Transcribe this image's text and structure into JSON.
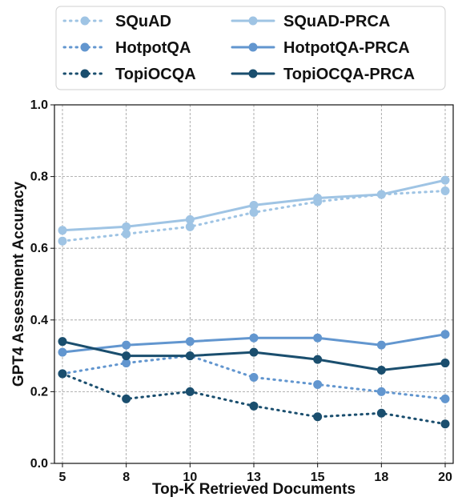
{
  "chart_data": {
    "type": "line",
    "title": "",
    "xlabel": "Top-K Retrieved Documents",
    "ylabel": "GPT4 Assessment Accuracy",
    "categories": [
      "5",
      "8",
      "10",
      "13",
      "15",
      "18",
      "20"
    ],
    "yticks": [
      "0.0",
      "0.2",
      "0.4",
      "0.6",
      "0.8",
      "1.0"
    ],
    "ylim": [
      0,
      1.0
    ],
    "grid": true,
    "legend_position": "top",
    "series": [
      {
        "name": "SQuAD",
        "color": "#9fc4e4",
        "dashed": true,
        "values": [
          0.62,
          0.64,
          0.66,
          0.7,
          0.73,
          0.75,
          0.76
        ]
      },
      {
        "name": "HotpotQA",
        "color": "#6296cf",
        "dashed": true,
        "values": [
          0.25,
          0.28,
          0.3,
          0.24,
          0.22,
          0.2,
          0.18
        ]
      },
      {
        "name": "TopiOCQA",
        "color": "#1a4e6e",
        "dashed": true,
        "values": [
          0.25,
          0.18,
          0.2,
          0.16,
          0.13,
          0.14,
          0.11
        ]
      },
      {
        "name": "SQuAD-PRCA",
        "color": "#9fc4e4",
        "dashed": false,
        "values": [
          0.65,
          0.66,
          0.68,
          0.72,
          0.74,
          0.75,
          0.79
        ]
      },
      {
        "name": "HotpotQA-PRCA",
        "color": "#6296cf",
        "dashed": false,
        "values": [
          0.31,
          0.33,
          0.34,
          0.35,
          0.35,
          0.33,
          0.36
        ]
      },
      {
        "name": "TopiOCQA-PRCA",
        "color": "#1a4e6e",
        "dashed": false,
        "values": [
          0.34,
          0.3,
          0.3,
          0.31,
          0.29,
          0.26,
          0.28
        ]
      }
    ]
  }
}
